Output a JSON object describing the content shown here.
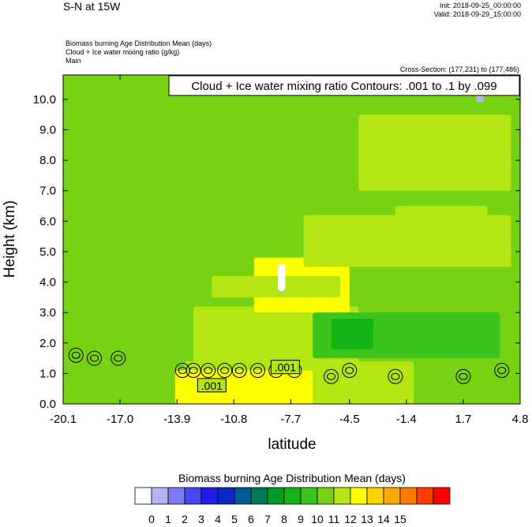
{
  "header": {
    "title": "S-N at 15W",
    "init": "Init: 2018-09-25_00:00:00",
    "valid": "Valid: 2018-09-29_15:00:00",
    "field_lines": [
      "Biomass burning Age Distribution Mean    (days)",
      "Cloud + Ice water mixing ratio    (g/kg)",
      "Main"
    ],
    "cross_section": "Cross-Section: (177,231) to (177,486)"
  },
  "chart_data": {
    "type": "heatmap",
    "contour_label": "Cloud + Ice water mixing ratio Contours: .001 to .1 by .099",
    "xlabel": "latitude",
    "ylabel": "Height (km)",
    "xlim": [
      -20.1,
      4.8
    ],
    "ylim": [
      0.0,
      10.8
    ],
    "x_ticks": [
      "-20.1",
      "-17.0",
      "-13.9",
      "-10.8",
      "-7.7",
      "-4.5",
      "-1.4",
      "1.7",
      "4.8"
    ],
    "y_ticks": [
      "0.0",
      "1.0",
      "2.0",
      "3.0",
      "4.0",
      "5.0",
      "6.0",
      "7.0",
      "8.0",
      "9.0",
      "10.0"
    ],
    "contour_annotations": [
      {
        "text": ".001",
        "x": -12.0,
        "y": 0.6
      },
      {
        "text": ".001",
        "x": -8.0,
        "y": 1.2
      }
    ],
    "colorbar": {
      "title": "Biomass burning Age Distribution Mean  (days)",
      "labels": [
        "0",
        "1",
        "2",
        "3",
        "4",
        "5",
        "6",
        "7",
        "8",
        "9",
        "10",
        "11",
        "12",
        "13",
        "14",
        "15"
      ],
      "colors": [
        "#ffffff",
        "#b4b4f5",
        "#7c7cf5",
        "#4646f5",
        "#1e1ee6",
        "#0a28c8",
        "#005a96",
        "#00785a",
        "#009b28",
        "#14b414",
        "#3cc31e",
        "#78d214",
        "#b4e614",
        "#ffff00",
        "#ffd200",
        "#ffaa00",
        "#ff7800",
        "#ff3c00",
        "#ff0000"
      ]
    },
    "regions": [
      {
        "value": 10.5,
        "x": [
          -20.1,
          4.8
        ],
        "y": [
          0.0,
          10.8
        ],
        "color": "#78d214"
      },
      {
        "value": 11.5,
        "x": [
          -13.5,
          -1.0
        ],
        "y": [
          0.0,
          1.4
        ],
        "color": "#b4e614"
      },
      {
        "value": 12.5,
        "x": [
          -14.0,
          -6.5
        ],
        "y": [
          0.0,
          1.1
        ],
        "color": "#ffff00"
      },
      {
        "value": 11.5,
        "x": [
          -13.0,
          -4.0
        ],
        "y": [
          1.2,
          3.2
        ],
        "color": "#b4e614"
      },
      {
        "value": 12.5,
        "x": [
          -9.7,
          -4.5
        ],
        "y": [
          3.0,
          4.8
        ],
        "color": "#ffff00"
      },
      {
        "value": 11.5,
        "x": [
          -12.0,
          -5.0
        ],
        "y": [
          3.5,
          4.2
        ],
        "color": "#b4e614"
      },
      {
        "value": 11.5,
        "x": [
          -7.0,
          4.3
        ],
        "y": [
          4.5,
          6.2
        ],
        "color": "#b4e614"
      },
      {
        "value": 11.5,
        "x": [
          -4.0,
          4.3
        ],
        "y": [
          7.0,
          9.5
        ],
        "color": "#b4e614"
      },
      {
        "value": 11.5,
        "x": [
          -2.0,
          3.0
        ],
        "y": [
          5.8,
          6.5
        ],
        "color": "#b4e614"
      },
      {
        "value": 9.5,
        "x": [
          -6.5,
          3.7
        ],
        "y": [
          1.5,
          3.0
        ],
        "color": "#3cc31e"
      },
      {
        "value": 8.5,
        "x": [
          -5.5,
          -3.2
        ],
        "y": [
          1.8,
          2.8
        ],
        "color": "#14b414"
      },
      {
        "value": 0.5,
        "x": [
          -8.4,
          -8.0
        ],
        "y": [
          3.7,
          4.6
        ],
        "color": "#ffffff"
      },
      {
        "value": 1.5,
        "x": [
          2.4,
          2.8
        ],
        "y": [
          9.9,
          10.2
        ],
        "color": "#b4b4f5"
      }
    ]
  }
}
